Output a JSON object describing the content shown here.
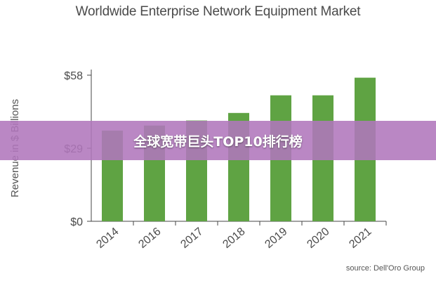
{
  "chart_data": {
    "type": "bar",
    "title": "Worldwide Enterprise Network Equipment Market",
    "ylabel": "Revenue in $ Billions",
    "xlabel": "",
    "categories": [
      "2014",
      "2016",
      "2017",
      "2018",
      "2019",
      "2020",
      "2021"
    ],
    "values": [
      36,
      38,
      40,
      43,
      50,
      50,
      57
    ],
    "ylim": [
      0,
      58
    ],
    "yticks": [
      0,
      29,
      58
    ],
    "ytick_labels": [
      "$0",
      "$29",
      "$58"
    ],
    "grid": false,
    "legend": "none",
    "bar_color": "#5fa343"
  },
  "banner": {
    "text": "全球宽带巨头TOP10排行榜"
  },
  "source": "source: Dell'Oro Group"
}
